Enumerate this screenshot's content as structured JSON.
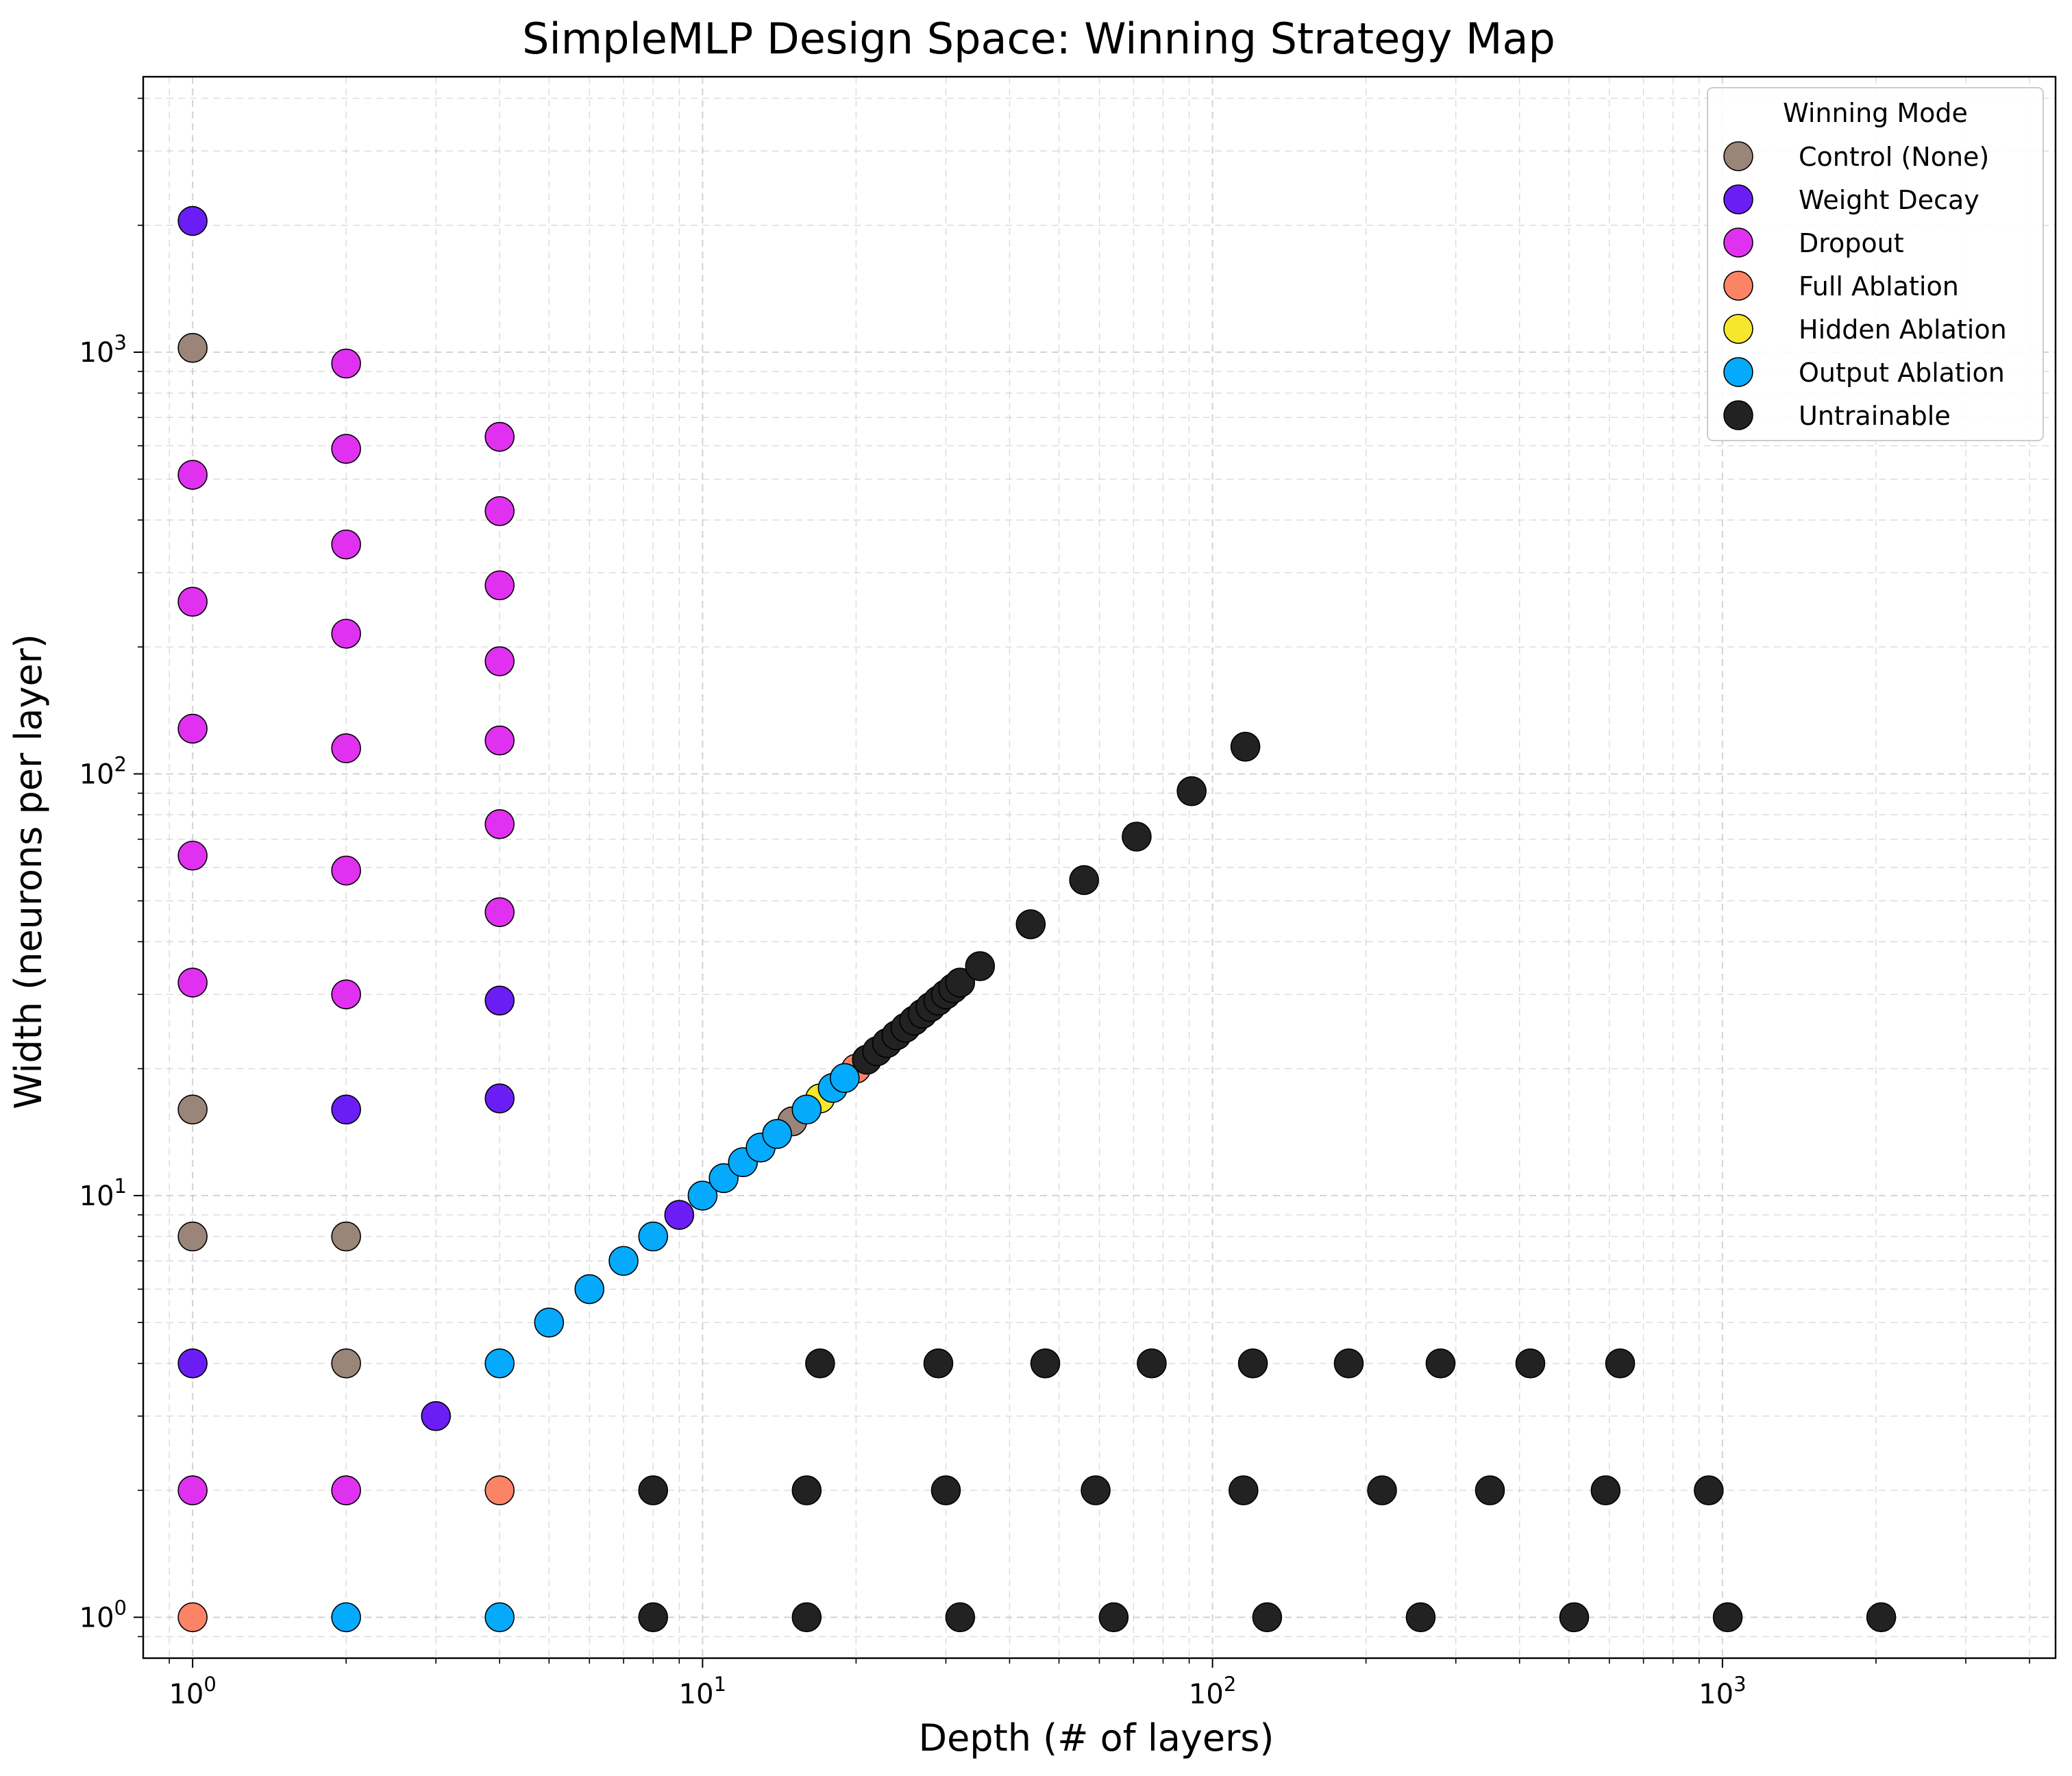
{
  "chart_data": {
    "type": "scatter",
    "title": "SimpleMLP Design Space: Winning Strategy Map",
    "xlabel": "Depth (# of layers)",
    "ylabel": "Width (neurons per layer)",
    "xscale": "log",
    "yscale": "log",
    "xlim": [
      0.8,
      4500
    ],
    "ylim": [
      0.8,
      4500
    ],
    "x_ticks": [
      {
        "value": 1,
        "base": "10",
        "exp": "0"
      },
      {
        "value": 10,
        "base": "10",
        "exp": "1"
      },
      {
        "value": 100,
        "base": "10",
        "exp": "2"
      },
      {
        "value": 1000,
        "base": "10",
        "exp": "3"
      }
    ],
    "y_ticks": [
      {
        "value": 1,
        "base": "10",
        "exp": "0"
      },
      {
        "value": 10,
        "base": "10",
        "exp": "1"
      },
      {
        "value": 100,
        "base": "10",
        "exp": "2"
      },
      {
        "value": 1000,
        "base": "10",
        "exp": "3"
      }
    ],
    "grid": true,
    "legend": {
      "title": "Winning Mode",
      "position": "top-right"
    },
    "series": [
      {
        "name": "Control (None)",
        "color": "#9b8579",
        "points": [
          [
            1,
            1024
          ],
          [
            1,
            16
          ],
          [
            1,
            8
          ],
          [
            2,
            8
          ],
          [
            2,
            4
          ],
          [
            15,
            15
          ]
        ]
      },
      {
        "name": "Weight Decay",
        "color": "#6a1ef5",
        "points": [
          [
            1,
            2048
          ],
          [
            1,
            4
          ],
          [
            2,
            16
          ],
          [
            4,
            29
          ],
          [
            4,
            17
          ],
          [
            3,
            3
          ],
          [
            9,
            9
          ]
        ]
      },
      {
        "name": "Dropout",
        "color": "#e031f0",
        "points": [
          [
            1,
            512
          ],
          [
            1,
            256
          ],
          [
            1,
            128
          ],
          [
            1,
            64
          ],
          [
            1,
            32
          ],
          [
            1,
            2
          ],
          [
            2,
            940
          ],
          [
            2,
            590
          ],
          [
            2,
            350
          ],
          [
            2,
            215
          ],
          [
            2,
            115
          ],
          [
            2,
            59
          ],
          [
            2,
            30
          ],
          [
            2,
            2
          ],
          [
            4,
            630
          ],
          [
            4,
            420
          ],
          [
            4,
            280
          ],
          [
            4,
            185
          ],
          [
            4,
            120
          ],
          [
            4,
            76
          ],
          [
            4,
            47
          ]
        ]
      },
      {
        "name": "Full Ablation",
        "color": "#fb8466",
        "points": [
          [
            1,
            1
          ],
          [
            4,
            2
          ],
          [
            20,
            20
          ]
        ]
      },
      {
        "name": "Hidden Ablation",
        "color": "#f6e72c",
        "points": [
          [
            17,
            17
          ]
        ]
      },
      {
        "name": "Output Ablation",
        "color": "#06aafc",
        "points": [
          [
            2,
            1
          ],
          [
            4,
            1
          ],
          [
            4,
            4
          ],
          [
            5,
            5
          ],
          [
            6,
            6
          ],
          [
            7,
            7
          ],
          [
            8,
            8
          ],
          [
            10,
            10
          ],
          [
            11,
            11
          ],
          [
            12,
            12
          ],
          [
            13,
            13
          ],
          [
            14,
            14
          ],
          [
            16,
            16
          ],
          [
            18,
            18
          ],
          [
            19,
            19
          ]
        ]
      },
      {
        "name": "Untrainable",
        "color": "#222222",
        "points": [
          [
            8,
            1
          ],
          [
            16,
            1
          ],
          [
            32,
            1
          ],
          [
            64,
            1
          ],
          [
            128,
            1
          ],
          [
            256,
            1
          ],
          [
            512,
            1
          ],
          [
            1024,
            1
          ],
          [
            2048,
            1
          ],
          [
            8,
            2
          ],
          [
            16,
            2
          ],
          [
            30,
            2
          ],
          [
            59,
            2
          ],
          [
            115,
            2
          ],
          [
            215,
            2
          ],
          [
            350,
            2
          ],
          [
            590,
            2
          ],
          [
            940,
            2
          ],
          [
            17,
            4
          ],
          [
            29,
            4
          ],
          [
            47,
            4
          ],
          [
            76,
            4
          ],
          [
            120,
            4
          ],
          [
            185,
            4
          ],
          [
            280,
            4
          ],
          [
            420,
            4
          ],
          [
            630,
            4
          ],
          [
            21,
            21
          ],
          [
            22,
            22
          ],
          [
            23,
            23
          ],
          [
            24,
            24
          ],
          [
            25,
            25
          ],
          [
            26,
            26
          ],
          [
            27,
            27
          ],
          [
            28,
            28
          ],
          [
            29,
            29
          ],
          [
            30,
            30
          ],
          [
            31,
            31
          ],
          [
            32,
            32
          ],
          [
            35,
            35
          ],
          [
            44,
            44
          ],
          [
            56,
            56
          ],
          [
            71,
            71
          ],
          [
            91,
            91
          ],
          [
            116,
            116
          ]
        ]
      }
    ]
  }
}
